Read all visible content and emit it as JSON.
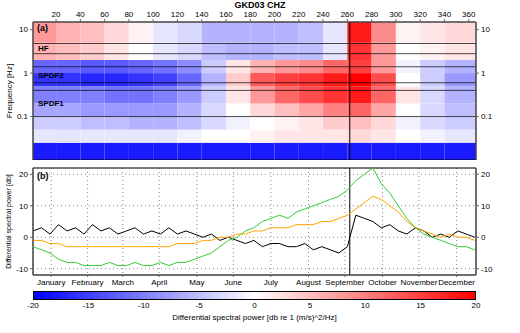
{
  "chart_data": [
    {
      "type": "heatmap",
      "title": "GKD03 CHZ",
      "annotations": [
        {
          "text": "(a)"
        }
      ],
      "ylabel": "Frequency [Hz]",
      "xlim": [
        1,
        366
      ],
      "xticks": [
        20,
        40,
        60,
        80,
        100,
        120,
        140,
        160,
        180,
        200,
        220,
        240,
        260,
        280,
        300,
        320,
        340,
        360
      ],
      "ylim": [
        0.01,
        15
      ],
      "yticks": [
        0.1,
        1,
        10
      ],
      "log": "y",
      "x_edges": [
        1,
        20,
        40,
        60,
        80,
        100,
        120,
        140,
        160,
        180,
        200,
        220,
        240,
        260,
        280,
        300,
        320,
        340,
        366
      ],
      "y_edges": [
        0.01,
        0.025,
        0.05,
        0.1,
        0.2,
        0.5,
        1,
        2,
        5,
        15
      ],
      "cells": [
        [
          -18,
          -18,
          -18,
          -18,
          -18,
          -18,
          -18,
          -18,
          -18,
          -18,
          -18,
          -18,
          -18,
          -18,
          -18,
          -18,
          -18,
          -18
        ],
        [
          -2,
          -2,
          -2,
          -2,
          -2,
          -2,
          -1,
          0,
          0,
          1,
          2,
          2,
          2,
          3,
          2,
          0,
          -1,
          -2
        ],
        [
          -4,
          -4,
          -5,
          -5,
          -6,
          -6,
          -5,
          -3,
          -1,
          0,
          1,
          2,
          4,
          5,
          3,
          -1,
          -3,
          -4
        ],
        [
          -7,
          -7,
          -8,
          -8,
          -8,
          -8,
          -6,
          -3,
          0,
          3,
          5,
          7,
          10,
          12,
          7,
          0,
          -3,
          -5
        ],
        [
          -10,
          -10,
          -10,
          -11,
          -11,
          -10,
          -8,
          -4,
          2,
          8,
          12,
          14,
          16,
          18,
          12,
          2,
          -3,
          -6
        ],
        [
          -16,
          -16,
          -17,
          -17,
          -16,
          -15,
          -12,
          -6,
          4,
          13,
          15,
          16,
          18,
          20,
          14,
          0,
          -4,
          -8
        ],
        [
          -12,
          -12,
          -13,
          -13,
          -12,
          -11,
          -9,
          -4,
          2,
          6,
          8,
          9,
          12,
          15,
          8,
          -1,
          -4,
          -6
        ],
        [
          6,
          5,
          4,
          2,
          0,
          -2,
          -3,
          -5,
          -6,
          -6,
          -5,
          -5,
          -2,
          16,
          8,
          0,
          1,
          2
        ],
        [
          8,
          6,
          5,
          3,
          1,
          -2,
          -3,
          -6,
          -6,
          -6,
          -6,
          -5,
          -2,
          18,
          9,
          1,
          2,
          3
        ]
      ],
      "bands": [
        {
          "label": "HF",
          "range": [
            2.8,
            4.8
          ]
        },
        {
          "label": "SPDF2",
          "range": [
            0.6,
            1.4
          ]
        },
        {
          "label": "SPDF1",
          "range": [
            0.1,
            0.4
          ]
        }
      ],
      "vlines": [
        262
      ],
      "colorbar": {
        "label": "Differential spectral power [db re 1 (m/s)^2/Hz]",
        "range": [
          -20,
          20
        ],
        "ticks": [
          -20,
          -15,
          -10,
          -5,
          0,
          5,
          10,
          15,
          20
        ],
        "colors": [
          "#0000ff",
          "#ffffff",
          "#ff0000"
        ]
      }
    },
    {
      "type": "line",
      "annotations": [
        {
          "text": "(b)"
        }
      ],
      "ylabel": "Differential spectral power [db]",
      "xlim": [
        1,
        366
      ],
      "xticks": [
        {
          "value": 16,
          "label": "January"
        },
        {
          "value": 46,
          "label": "February"
        },
        {
          "value": 75,
          "label": "March"
        },
        {
          "value": 105,
          "label": "April"
        },
        {
          "value": 136,
          "label": "May"
        },
        {
          "value": 166,
          "label": "June"
        },
        {
          "value": 197,
          "label": "July"
        },
        {
          "value": 228,
          "label": "August"
        },
        {
          "value": 258,
          "label": "September"
        },
        {
          "value": 289,
          "label": "October"
        },
        {
          "value": 319,
          "label": "November"
        },
        {
          "value": 350,
          "label": "December"
        }
      ],
      "ylim": [
        -12,
        22
      ],
      "yticks": [
        -10,
        0,
        10,
        20
      ],
      "grid": true,
      "vlines": [
        262
      ],
      "x": [
        1,
        8,
        15,
        22,
        29,
        36,
        43,
        50,
        57,
        64,
        71,
        78,
        85,
        92,
        99,
        106,
        113,
        120,
        127,
        134,
        141,
        148,
        155,
        162,
        169,
        176,
        183,
        190,
        197,
        204,
        211,
        218,
        225,
        232,
        239,
        246,
        253,
        260,
        267,
        274,
        281,
        288,
        295,
        302,
        309,
        316,
        323,
        330,
        337,
        344,
        351,
        358,
        365
      ],
      "series": [
        {
          "color": "#000000",
          "values": [
            2,
            3,
            1,
            4,
            2,
            3,
            1,
            4,
            2,
            3,
            1,
            2,
            3,
            1,
            2,
            1,
            3,
            1,
            2,
            1,
            0,
            1,
            -1,
            0,
            -1,
            -2,
            -1,
            -3,
            -2,
            -2,
            -3,
            -3,
            -2,
            -4,
            -3,
            -4,
            -5,
            -3,
            7,
            6,
            5,
            3,
            4,
            2,
            1,
            3,
            2,
            0,
            1,
            0,
            2,
            1,
            0
          ]
        },
        {
          "color": "#33cc33",
          "values": [
            -3,
            -4,
            -5,
            -7,
            -8,
            -8,
            -9,
            -9,
            -9,
            -8,
            -9,
            -9,
            -8,
            -9,
            -9,
            -8,
            -9,
            -8,
            -8,
            -7,
            -6,
            -5,
            -3,
            -1,
            0,
            2,
            3,
            5,
            6,
            7,
            6,
            8,
            9,
            10,
            11,
            12,
            13,
            15,
            18,
            20,
            22,
            17,
            14,
            10,
            6,
            3,
            1,
            0,
            -1,
            -2,
            -3,
            -3,
            -4
          ]
        },
        {
          "color": "#ffa500",
          "values": [
            -1,
            -1,
            -2,
            -2,
            -3,
            -3,
            -3,
            -3,
            -3,
            -3,
            -3,
            -3,
            -3,
            -3,
            -3,
            -3,
            -3,
            -2,
            -2,
            -2,
            -1,
            -1,
            0,
            0,
            1,
            1,
            2,
            2,
            3,
            3,
            3,
            4,
            4,
            4,
            5,
            5,
            6,
            7,
            9,
            11,
            13,
            12,
            10,
            8,
            5,
            3,
            2,
            1,
            0,
            1,
            0,
            0,
            -1
          ]
        }
      ]
    }
  ]
}
